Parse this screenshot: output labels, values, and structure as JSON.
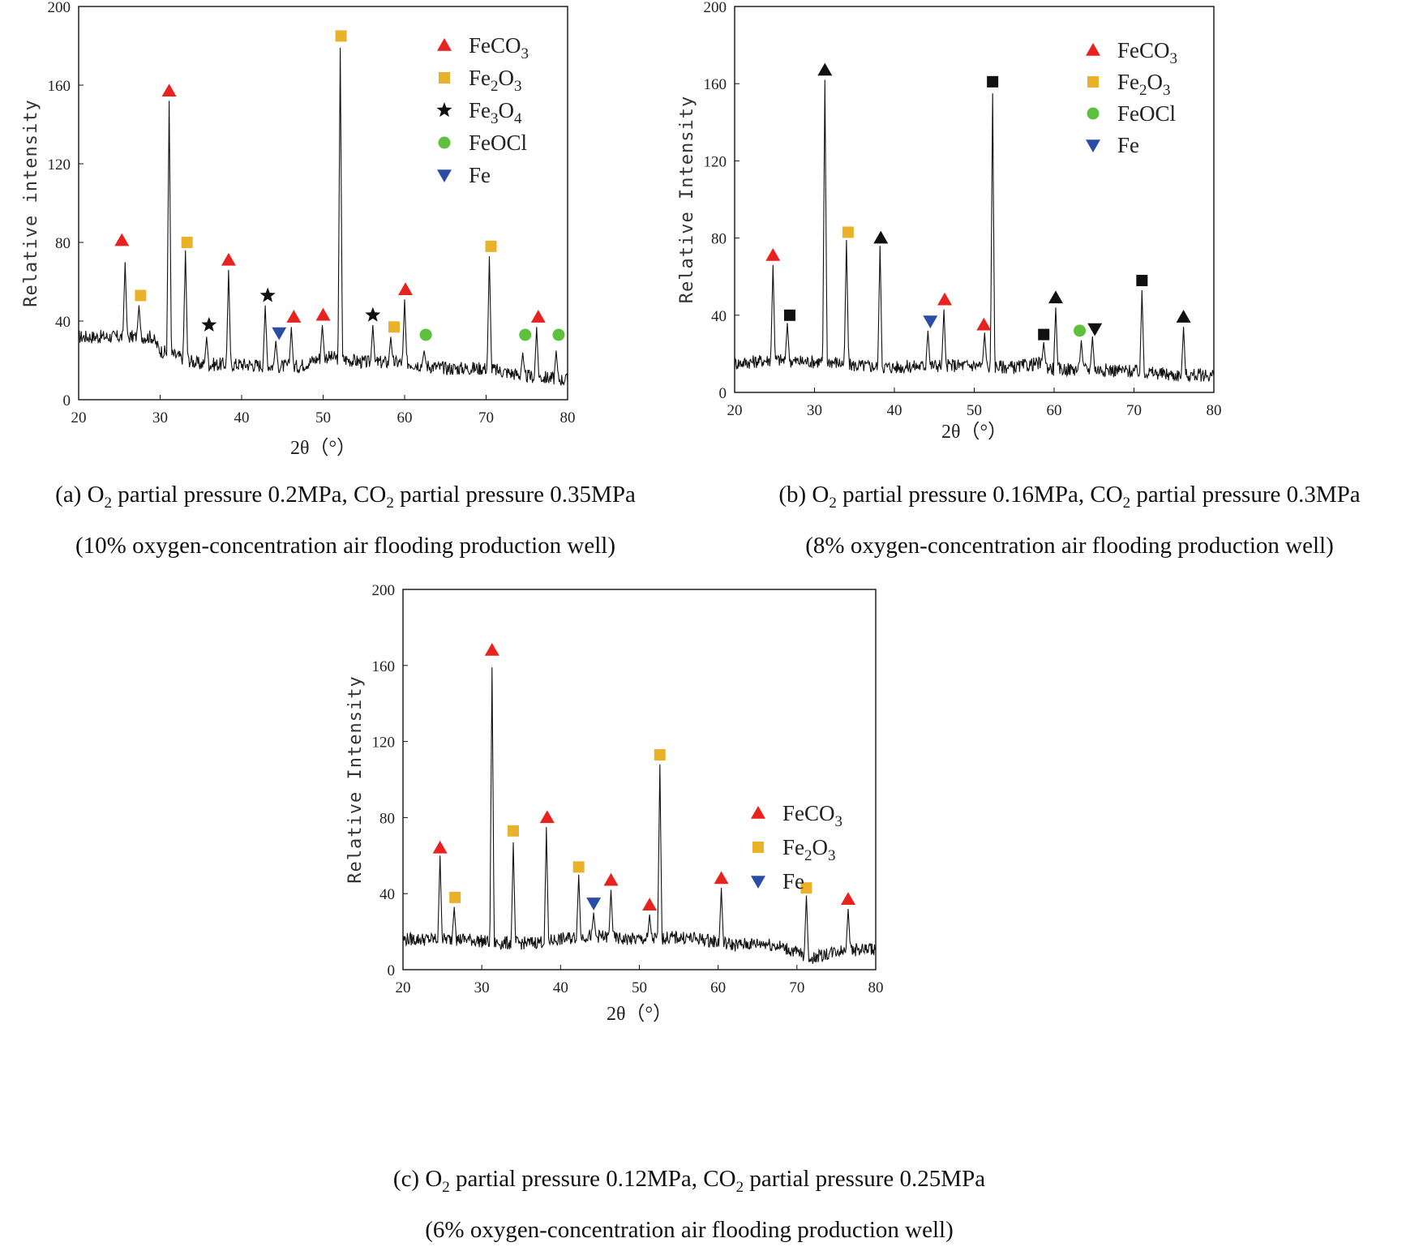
{
  "figure": {
    "panels": [
      {
        "caption": {
          "line1_pre": "(a) O",
          "line1_mid": " partial pressure 0.2MPa, CO",
          "line1_post": " partial pressure 0.35MPa",
          "sub": "2",
          "line2": "(10% oxygen-concentration air flooding production well)"
        }
      },
      {
        "caption": {
          "line1_pre": "(b) O",
          "line1_mid": " partial pressure 0.16MPa, CO",
          "line1_post": " partial pressure 0.3MPa",
          "sub": "2",
          "line2": "(8% oxygen-concentration air flooding production well)"
        }
      },
      {
        "caption": {
          "line1_pre": "(c) O",
          "line1_mid": " partial pressure 0.12MPa, CO",
          "line1_post": " partial pressure 0.25MPa",
          "sub": "2",
          "line2": "(6% oxygen-concentration air flooding production well)"
        }
      }
    ]
  },
  "colors": {
    "FeCO3": "#e8221f",
    "Fe2O3": "#eab22b",
    "Fe3O4": "#111111",
    "FeOCl": "#5ec13d",
    "Fe": "#2a4ea6",
    "black": "#111111",
    "line": "#111111"
  },
  "chart_data": [
    {
      "type": "line",
      "title": "",
      "xlabel": "2θ（°）",
      "ylabel": "Relative intensity",
      "xlim": [
        20,
        80
      ],
      "ylim": [
        0,
        200
      ],
      "xticks": [
        20,
        30,
        40,
        50,
        60,
        70,
        80
      ],
      "yticks": [
        0,
        40,
        80,
        120,
        160,
        200
      ],
      "legend": [
        {
          "label": "FeCO",
          "sub": "3",
          "marker": "triangle-up",
          "color_key": "FeCO3"
        },
        {
          "label": "Fe",
          "sub": "2",
          "label2": "O",
          "sub2": "3",
          "marker": "square",
          "color_key": "Fe2O3"
        },
        {
          "label": "Fe",
          "sub": "3",
          "label2": "O",
          "sub2": "4",
          "marker": "star",
          "color_key": "Fe3O4"
        },
        {
          "label": "FeOCl",
          "marker": "circle",
          "color_key": "FeOCl"
        },
        {
          "label": "Fe",
          "marker": "triangle-down",
          "color_key": "Fe"
        }
      ],
      "baseline": [
        [
          20,
          32
        ],
        [
          25,
          32
        ],
        [
          29,
          32
        ],
        [
          30,
          25
        ],
        [
          35,
          18
        ],
        [
          40,
          18
        ],
        [
          45,
          17
        ],
        [
          47,
          17
        ],
        [
          50,
          22
        ],
        [
          52,
          21
        ],
        [
          55,
          19
        ],
        [
          60,
          19
        ],
        [
          65,
          16
        ],
        [
          70,
          16
        ],
        [
          75,
          12
        ],
        [
          78,
          11
        ],
        [
          80,
          10
        ]
      ],
      "peaks": [
        {
          "x": 25.7,
          "y": 70,
          "phase": "FeCO3",
          "marker": "triangle-up",
          "mx": 25.3,
          "my": 81
        },
        {
          "x": 27.4,
          "y": 48,
          "phase": "Fe2O3",
          "marker": "square",
          "mx": 27.6,
          "my": 53
        },
        {
          "x": 31.1,
          "y": 152,
          "phase": "FeCO3",
          "marker": "triangle-up",
          "mx": 31.1,
          "my": 157
        },
        {
          "x": 33.1,
          "y": 76,
          "phase": "Fe2O3",
          "marker": "square",
          "mx": 33.3,
          "my": 80
        },
        {
          "x": 35.7,
          "y": 32,
          "phase": "Fe3O4",
          "marker": "star",
          "mx": 36.0,
          "my": 38
        },
        {
          "x": 38.4,
          "y": 66,
          "phase": "FeCO3",
          "marker": "triangle-up",
          "mx": 38.4,
          "my": 71
        },
        {
          "x": 42.9,
          "y": 48,
          "phase": "Fe3O4",
          "marker": "star",
          "mx": 43.2,
          "my": 53
        },
        {
          "x": 44.2,
          "y": 30,
          "phase": "Fe",
          "marker": "triangle-down",
          "mx": 44.6,
          "my": 34
        },
        {
          "x": 46.1,
          "y": 37,
          "phase": "FeCO3",
          "marker": "triangle-up",
          "mx": 46.4,
          "my": 42
        },
        {
          "x": 49.9,
          "y": 38,
          "phase": "FeCO3",
          "marker": "triangle-up",
          "mx": 50.0,
          "my": 43
        },
        {
          "x": 52.1,
          "y": 179,
          "phase": "Fe2O3",
          "marker": "square",
          "mx": 52.2,
          "my": 185
        },
        {
          "x": 56.1,
          "y": 38,
          "phase": "Fe3O4",
          "marker": "star",
          "mx": 56.1,
          "my": 43
        },
        {
          "x": 58.3,
          "y": 32,
          "phase": "Fe2O3",
          "marker": "square",
          "mx": 58.7,
          "my": 37
        },
        {
          "x": 60.0,
          "y": 51,
          "phase": "FeCO3",
          "marker": "triangle-up",
          "mx": 60.1,
          "my": 56
        },
        {
          "x": 62.4,
          "y": 25,
          "phase": "FeOCl",
          "marker": "circle",
          "mx": 62.6,
          "my": 33
        },
        {
          "x": 70.4,
          "y": 73,
          "phase": "Fe2O3",
          "marker": "square",
          "mx": 70.6,
          "my": 78
        },
        {
          "x": 74.5,
          "y": 24,
          "phase": "FeOCl",
          "marker": "circle",
          "mx": 74.8,
          "my": 33
        },
        {
          "x": 76.2,
          "y": 37,
          "phase": "FeCO3",
          "marker": "triangle-up",
          "mx": 76.4,
          "my": 42
        },
        {
          "x": 78.6,
          "y": 25,
          "phase": "FeOCl",
          "marker": "circle",
          "mx": 78.9,
          "my": 33
        }
      ]
    },
    {
      "type": "line",
      "title": "",
      "xlabel": "2θ（°）",
      "ylabel": "Relative Intensity",
      "xlim": [
        20,
        80
      ],
      "ylim": [
        0,
        200
      ],
      "xticks": [
        20,
        30,
        40,
        50,
        60,
        70,
        80
      ],
      "yticks": [
        0,
        40,
        80,
        120,
        160,
        200
      ],
      "legend": [
        {
          "label": "FeCO",
          "sub": "3",
          "marker": "triangle-up",
          "color_key": "FeCO3"
        },
        {
          "label": "Fe",
          "sub": "2",
          "label2": "O",
          "sub2": "3",
          "marker": "square",
          "color_key": "Fe2O3"
        },
        {
          "label": "FeOCl",
          "marker": "circle",
          "color_key": "FeOCl"
        },
        {
          "label": "Fe",
          "marker": "triangle-down",
          "color_key": "Fe"
        }
      ],
      "baseline": [
        [
          20,
          15
        ],
        [
          25,
          17
        ],
        [
          28,
          16
        ],
        [
          32,
          16
        ],
        [
          35,
          14
        ],
        [
          40,
          13
        ],
        [
          45,
          14
        ],
        [
          50,
          14
        ],
        [
          55,
          13
        ],
        [
          58,
          15
        ],
        [
          60,
          12
        ],
        [
          65,
          12
        ],
        [
          70,
          11
        ],
        [
          75,
          9
        ],
        [
          80,
          9
        ]
      ],
      "peaks": [
        {
          "x": 24.8,
          "y": 66,
          "phase": "FeCO3",
          "marker": "triangle-up",
          "mx": 24.8,
          "my": 71
        },
        {
          "x": 26.6,
          "y": 36,
          "phase": "black",
          "marker": "square",
          "mx": 26.9,
          "my": 40
        },
        {
          "x": 31.3,
          "y": 162,
          "phase": "black",
          "marker": "triangle-up",
          "mx": 31.3,
          "my": 167
        },
        {
          "x": 34.0,
          "y": 79,
          "phase": "Fe2O3",
          "marker": "square",
          "mx": 34.2,
          "my": 83
        },
        {
          "x": 38.2,
          "y": 76,
          "phase": "black",
          "marker": "triangle-up",
          "mx": 38.3,
          "my": 80
        },
        {
          "x": 44.2,
          "y": 32,
          "phase": "Fe",
          "marker": "triangle-down",
          "mx": 44.5,
          "my": 37
        },
        {
          "x": 46.2,
          "y": 43,
          "phase": "FeCO3",
          "marker": "triangle-up",
          "mx": 46.3,
          "my": 48
        },
        {
          "x": 51.3,
          "y": 31,
          "phase": "FeCO3",
          "marker": "triangle-up",
          "mx": 51.2,
          "my": 35
        },
        {
          "x": 52.3,
          "y": 155,
          "phase": "black",
          "marker": "square",
          "mx": 52.3,
          "my": 161
        },
        {
          "x": 58.7,
          "y": 26,
          "phase": "black",
          "marker": "square",
          "mx": 58.7,
          "my": 30
        },
        {
          "x": 60.2,
          "y": 44,
          "phase": "black",
          "marker": "triangle-up",
          "mx": 60.2,
          "my": 49
        },
        {
          "x": 63.4,
          "y": 27,
          "phase": "FeOCl",
          "marker": "circle",
          "mx": 63.2,
          "my": 32
        },
        {
          "x": 64.8,
          "y": 29,
          "phase": "black",
          "marker": "triangle-down",
          "mx": 65.1,
          "my": 33
        },
        {
          "x": 71.0,
          "y": 53,
          "phase": "black",
          "marker": "square",
          "mx": 71.0,
          "my": 58
        },
        {
          "x": 76.2,
          "y": 34,
          "phase": "black",
          "marker": "triangle-up",
          "mx": 76.2,
          "my": 39
        }
      ]
    },
    {
      "type": "line",
      "title": "",
      "xlabel": "2θ（°）",
      "ylabel": "Relative Intensity",
      "xlim": [
        20,
        80
      ],
      "ylim": [
        0,
        200
      ],
      "xticks": [
        20,
        30,
        40,
        50,
        60,
        70,
        80
      ],
      "yticks": [
        0,
        40,
        80,
        120,
        160,
        200
      ],
      "legend": [
        {
          "label": "FeCO",
          "sub": "3",
          "marker": "triangle-up",
          "color_key": "FeCO3"
        },
        {
          "label": "Fe",
          "sub": "2",
          "label2": "O",
          "sub2": "3",
          "marker": "square",
          "color_key": "Fe2O3"
        },
        {
          "label": "Fe",
          "marker": "triangle-down",
          "color_key": "Fe"
        }
      ],
      "baseline": [
        [
          20,
          16
        ],
        [
          25,
          16
        ],
        [
          28,
          16
        ],
        [
          30,
          15
        ],
        [
          32,
          14
        ],
        [
          36,
          14
        ],
        [
          40,
          16
        ],
        [
          44,
          18
        ],
        [
          48,
          16
        ],
        [
          50,
          16
        ],
        [
          55,
          17
        ],
        [
          58,
          16
        ],
        [
          62,
          13
        ],
        [
          66,
          14
        ],
        [
          68,
          12
        ],
        [
          72,
          6
        ],
        [
          75,
          10
        ],
        [
          80,
          11
        ]
      ],
      "peaks": [
        {
          "x": 24.7,
          "y": 60,
          "phase": "FeCO3",
          "marker": "triangle-up",
          "mx": 24.7,
          "my": 64
        },
        {
          "x": 26.5,
          "y": 33,
          "phase": "Fe2O3",
          "marker": "square",
          "mx": 26.6,
          "my": 38
        },
        {
          "x": 31.3,
          "y": 159,
          "phase": "FeCO3",
          "marker": "triangle-up",
          "mx": 31.3,
          "my": 168
        },
        {
          "x": 34.0,
          "y": 67,
          "phase": "Fe2O3",
          "marker": "square",
          "mx": 34.0,
          "my": 73
        },
        {
          "x": 38.2,
          "y": 75,
          "phase": "FeCO3",
          "marker": "triangle-up",
          "mx": 38.3,
          "my": 80
        },
        {
          "x": 42.3,
          "y": 50,
          "phase": "Fe2O3",
          "marker": "square",
          "mx": 42.3,
          "my": 54
        },
        {
          "x": 44.2,
          "y": 30,
          "phase": "Fe",
          "marker": "triangle-down",
          "mx": 44.2,
          "my": 35
        },
        {
          "x": 46.4,
          "y": 42,
          "phase": "FeCO3",
          "marker": "triangle-up",
          "mx": 46.4,
          "my": 47
        },
        {
          "x": 51.3,
          "y": 29,
          "phase": "FeCO3",
          "marker": "triangle-up",
          "mx": 51.3,
          "my": 34
        },
        {
          "x": 52.6,
          "y": 108,
          "phase": "Fe2O3",
          "marker": "square",
          "mx": 52.6,
          "my": 113
        },
        {
          "x": 60.4,
          "y": 43,
          "phase": "FeCO3",
          "marker": "triangle-up",
          "mx": 60.4,
          "my": 48
        },
        {
          "x": 71.2,
          "y": 39,
          "phase": "Fe2O3",
          "marker": "square",
          "mx": 71.2,
          "my": 43
        },
        {
          "x": 76.5,
          "y": 32,
          "phase": "FeCO3",
          "marker": "triangle-up",
          "mx": 76.5,
          "my": 37
        }
      ]
    }
  ]
}
